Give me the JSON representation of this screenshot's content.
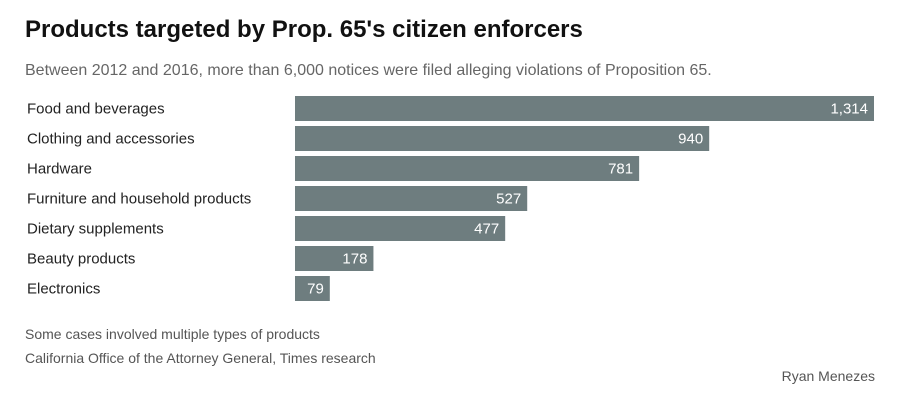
{
  "colors": {
    "bar": "#6e7d7f",
    "value_label": "#ffffff"
  },
  "chart_data": {
    "type": "bar",
    "orientation": "horizontal",
    "title": "Products targeted by Prop. 65's citizen enforcers",
    "subtitle": "Between 2012 and 2016, more than 6,000 notices were filed alleging violations of Proposition 65.",
    "categories": [
      "Food and beverages",
      "Clothing and accessories",
      "Hardware",
      "Furniture and household products",
      "Dietary supplements",
      "Beauty products",
      "Electronics"
    ],
    "values": [
      1314,
      940,
      781,
      527,
      477,
      178,
      79
    ],
    "value_labels": [
      "1,314",
      "940",
      "781",
      "527",
      "477",
      "178",
      "79"
    ],
    "xlim": [
      0,
      1314
    ],
    "grid": false,
    "note": "Some cases involved multiple types of products",
    "source": "California Office of the Attorney General, Times research",
    "credit": "Ryan Menezes"
  }
}
